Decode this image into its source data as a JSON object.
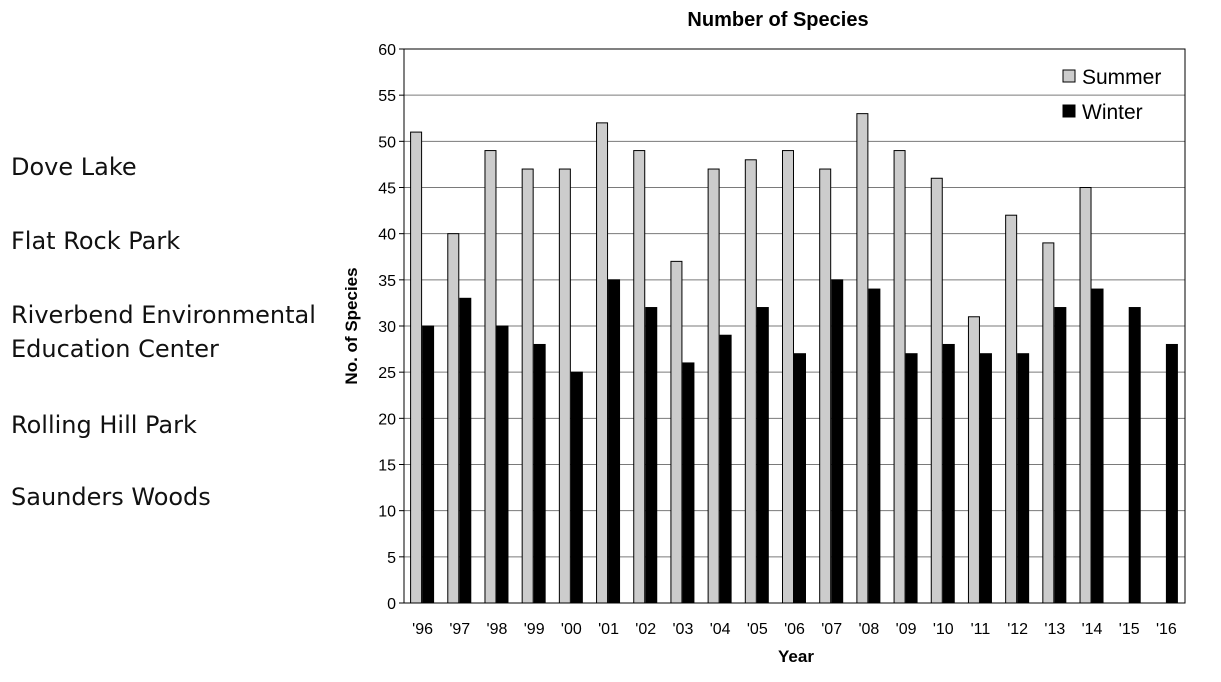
{
  "sites": {
    "items": [
      "Dove Lake",
      "Flat Rock Park",
      "Riverbend Environmental Education Center",
      "Rolling Hill Park",
      "Saunders Woods"
    ],
    "lines": [
      [
        "Dove Lake"
      ],
      [
        "Flat Rock Park"
      ],
      [
        "Riverbend Environmental",
        "Education Center"
      ],
      [
        "Rolling Hill Park"
      ],
      [
        "Saunders Woods"
      ]
    ]
  },
  "chart_data": {
    "type": "bar",
    "title": "Number of Species",
    "xlabel": "Year",
    "ylabel": "No. of Species",
    "ylim": [
      0,
      60
    ],
    "yticks": [
      0,
      5,
      10,
      15,
      20,
      25,
      30,
      35,
      40,
      45,
      50,
      55,
      60
    ],
    "grid": true,
    "legend": "top-right",
    "categories": [
      "'96",
      "'97",
      "'98",
      "'99",
      "'00",
      "'01",
      "'02",
      "'03",
      "'04",
      "'05",
      "'06",
      "'07",
      "'08",
      "'09",
      "'10",
      "'11",
      "'12",
      "'13",
      "'14",
      "'15",
      "'16"
    ],
    "series": [
      {
        "name": "Summer",
        "color": "#cccccc",
        "values": [
          51,
          40,
          49,
          47,
          47,
          52,
          49,
          37,
          47,
          48,
          49,
          47,
          53,
          49,
          46,
          31,
          42,
          39,
          45,
          null,
          null
        ]
      },
      {
        "name": "Winter",
        "color": "#000000",
        "values": [
          30,
          33,
          30,
          28,
          25,
          35,
          32,
          26,
          29,
          32,
          27,
          35,
          34,
          27,
          28,
          27,
          27,
          32,
          34,
          32,
          28
        ]
      }
    ]
  }
}
